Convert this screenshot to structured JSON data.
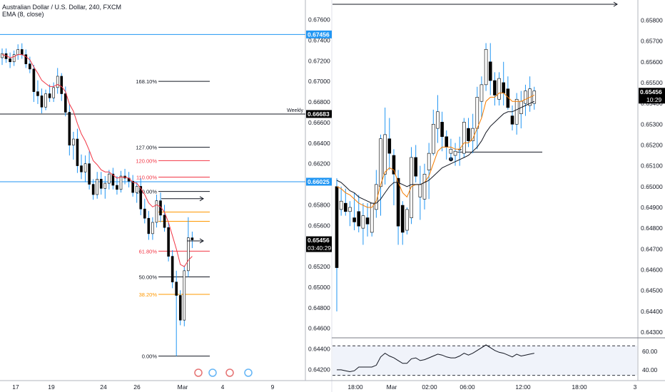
{
  "header": {
    "title": "Australian Dollar / U.S. Dollar, 240, FXCM",
    "indicator": "EMA (8, close)"
  },
  "colors": {
    "bull": "#ffffff",
    "bear": "#000000",
    "wick": "#2196f3",
    "ema_orange": "#f57c00",
    "ema_black": "#131722",
    "level_blue": "#2196f3",
    "fib_red": "#f23645",
    "fib_orange": "#ff9800",
    "fib_gray": "#787b86",
    "axis_text": "#131722"
  },
  "chart_data": [
    {
      "type": "candlestick",
      "panel": "left",
      "title": "Australian Dollar / U.S. Dollar, 240, FXCM",
      "indicator": "EMA (8, close)",
      "y_ticks": [
        "0.67600",
        "0.67400",
        "0.67200",
        "0.67000",
        "0.66800",
        "0.66600",
        "0.66400",
        "0.66200",
        "0.65800",
        "0.65600",
        "0.65200",
        "0.65000",
        "0.64800",
        "0.64600",
        "0.64400",
        "0.64200"
      ],
      "ylim": [
        0.6412,
        0.6768
      ],
      "x_ticks": [
        "17",
        "19",
        "24",
        "26",
        "Mar",
        "4",
        "9"
      ],
      "price_labels": [
        {
          "text": "0.67456",
          "price": 0.67456,
          "color": "#2196f3"
        },
        {
          "text": "0.66683",
          "price": 0.66683,
          "color": "#000000",
          "note": "Weekly"
        },
        {
          "text": "0.66025",
          "price": 0.66025,
          "color": "#2196f3"
        },
        {
          "text": "0.65456",
          "price": 0.65456,
          "color": "#000000",
          "sub": "03:40:29"
        }
      ],
      "fib_levels": [
        {
          "label": "168.10%",
          "price": 0.67,
          "color": "#131722"
        },
        {
          "label": "127.00%",
          "price": 0.6636,
          "color": "#131722"
        },
        {
          "label": "120.00%",
          "price": 0.6623,
          "color": "#f23645"
        },
        {
          "label": "110.00%",
          "price": 0.6607,
          "color": "#f23645"
        },
        {
          "label": "100.00%",
          "price": 0.6593,
          "color": "#131722"
        },
        {
          "label": "",
          "price": 0.6573,
          "color": "#ff9800"
        },
        {
          "label": "",
          "price": 0.6564,
          "color": "#ff9800"
        },
        {
          "label": "61.80%",
          "price": 0.6535,
          "color": "#f23645"
        },
        {
          "label": "50.00%",
          "price": 0.651,
          "color": "#131722"
        },
        {
          "label": "38.20%",
          "price": 0.6493,
          "color": "#ff9800"
        },
        {
          "label": "0.00%",
          "price": 0.6433,
          "color": "#131722"
        }
      ],
      "candles": [
        [
          0.6723,
          0.6732,
          0.6716,
          0.6727
        ],
        [
          0.6727,
          0.6732,
          0.6718,
          0.6722
        ],
        [
          0.6722,
          0.6728,
          0.6713,
          0.6719
        ],
        [
          0.6719,
          0.673,
          0.6715,
          0.6726
        ],
        [
          0.6726,
          0.6736,
          0.6721,
          0.6731
        ],
        [
          0.6731,
          0.6737,
          0.6722,
          0.6726
        ],
        [
          0.6726,
          0.6731,
          0.6713,
          0.6717
        ],
        [
          0.6717,
          0.6724,
          0.6708,
          0.6712
        ],
        [
          0.6712,
          0.6716,
          0.668,
          0.669
        ],
        [
          0.669,
          0.6701,
          0.6678,
          0.6686
        ],
        [
          0.6686,
          0.6693,
          0.6669,
          0.6675
        ],
        [
          0.6675,
          0.6692,
          0.6672,
          0.6688
        ],
        [
          0.6688,
          0.6697,
          0.668,
          0.6684
        ],
        [
          0.6684,
          0.6699,
          0.668,
          0.6694
        ],
        [
          0.6694,
          0.6713,
          0.6688,
          0.6705
        ],
        [
          0.6705,
          0.6708,
          0.6681,
          0.6688
        ],
        [
          0.6688,
          0.6695,
          0.6666,
          0.667
        ],
        [
          0.667,
          0.6678,
          0.6628,
          0.6638
        ],
        [
          0.6638,
          0.6651,
          0.6624,
          0.6644
        ],
        [
          0.6644,
          0.6654,
          0.6611,
          0.6618
        ],
        [
          0.6618,
          0.6629,
          0.6605,
          0.6612
        ],
        [
          0.6612,
          0.6628,
          0.6602,
          0.662
        ],
        [
          0.662,
          0.6632,
          0.6595,
          0.66
        ],
        [
          0.66,
          0.6605,
          0.6585,
          0.659
        ],
        [
          0.659,
          0.6612,
          0.6586,
          0.6605
        ],
        [
          0.6605,
          0.6612,
          0.659,
          0.6596
        ],
        [
          0.6596,
          0.6608,
          0.6586,
          0.6601
        ],
        [
          0.6601,
          0.6614,
          0.6595,
          0.661
        ],
        [
          0.661,
          0.6616,
          0.6595,
          0.6599
        ],
        [
          0.6599,
          0.6608,
          0.659,
          0.6595
        ],
        [
          0.6595,
          0.6613,
          0.6592,
          0.6608
        ],
        [
          0.6608,
          0.6615,
          0.66,
          0.6606
        ],
        [
          0.6606,
          0.6612,
          0.6597,
          0.6603
        ],
        [
          0.6603,
          0.6609,
          0.6588,
          0.6592
        ],
        [
          0.6592,
          0.6602,
          0.6582,
          0.6598
        ],
        [
          0.6598,
          0.6606,
          0.657,
          0.6576
        ],
        [
          0.6576,
          0.6586,
          0.6562,
          0.6567
        ],
        [
          0.6567,
          0.6574,
          0.6546,
          0.6552
        ],
        [
          0.6552,
          0.6568,
          0.6546,
          0.6563
        ],
        [
          0.6563,
          0.659,
          0.6558,
          0.6584
        ],
        [
          0.6584,
          0.6592,
          0.6563,
          0.657
        ],
        [
          0.657,
          0.658,
          0.6554,
          0.6558
        ],
        [
          0.6558,
          0.6563,
          0.6525,
          0.653
        ],
        [
          0.653,
          0.6536,
          0.6499,
          0.6505
        ],
        [
          0.6505,
          0.6516,
          0.6433,
          0.6492
        ],
        [
          0.6492,
          0.6497,
          0.6463,
          0.6468
        ],
        [
          0.6468,
          0.6521,
          0.6462,
          0.6516
        ],
        [
          0.6516,
          0.6568,
          0.651,
          0.6548
        ],
        [
          0.6548,
          0.6554,
          0.6538,
          0.6546
        ]
      ],
      "ema": [
        0.6726,
        0.6725,
        0.6723,
        0.6724,
        0.6726,
        0.6726,
        0.6724,
        0.6721,
        0.6714,
        0.6708,
        0.6701,
        0.6698,
        0.6695,
        0.6695,
        0.6697,
        0.6695,
        0.669,
        0.6678,
        0.6671,
        0.6659,
        0.6649,
        0.6642,
        0.6633,
        0.6623,
        0.6619,
        0.6614,
        0.6612,
        0.6612,
        0.6609,
        0.6606,
        0.6607,
        0.6607,
        0.6606,
        0.6602,
        0.6601,
        0.6596,
        0.659,
        0.6582,
        0.6578,
        0.658,
        0.6578,
        0.6573,
        0.6563,
        0.655,
        0.6537,
        0.6522,
        0.652,
        0.6526,
        0.653
      ],
      "annotations": [
        "Weekly"
      ]
    },
    {
      "type": "candlestick",
      "panel": "right",
      "y_ticks": [
        "0.65800",
        "0.65700",
        "0.65600",
        "0.65500",
        "0.65400",
        "0.65300",
        "0.65200",
        "0.65100",
        "0.65000",
        "0.64900",
        "0.64800",
        "0.64700",
        "0.64600",
        "0.64500",
        "0.64400",
        "0.64300"
      ],
      "ylim": [
        0.643,
        0.6587
      ],
      "x_ticks": [
        "18:00",
        "Mar",
        "02:00",
        "06:00",
        "12:00",
        "18:00",
        "3"
      ],
      "price_labels": [
        {
          "text": "0.65456",
          "price": 0.65456,
          "color": "#000000",
          "sub": "10:29"
        }
      ],
      "horizontal_level": 0.65166,
      "candles": [
        [
          0.65,
          0.6504,
          0.644,
          0.6461
        ],
        [
          0.6489,
          0.65,
          0.6486,
          0.6493
        ],
        [
          0.6492,
          0.6499,
          0.6486,
          0.6488
        ],
        [
          0.6488,
          0.6493,
          0.6481,
          0.649
        ],
        [
          0.6485,
          0.6497,
          0.6479,
          0.6483
        ],
        [
          0.6488,
          0.6496,
          0.6478,
          0.6481
        ],
        [
          0.648,
          0.6492,
          0.6472,
          0.6486
        ],
        [
          0.6485,
          0.6492,
          0.6476,
          0.6482
        ],
        [
          0.6478,
          0.6492,
          0.6476,
          0.6492
        ],
        [
          0.6489,
          0.6508,
          0.6485,
          0.6501
        ],
        [
          0.65,
          0.6525,
          0.6486,
          0.6523
        ],
        [
          0.6506,
          0.6538,
          0.6501,
          0.6525
        ],
        [
          0.6523,
          0.6533,
          0.6508,
          0.6516
        ],
        [
          0.6515,
          0.6518,
          0.6491,
          0.6506
        ],
        [
          0.6504,
          0.6508,
          0.6472,
          0.6481
        ],
        [
          0.6491,
          0.6493,
          0.6472,
          0.6478
        ],
        [
          0.6479,
          0.649,
          0.6477,
          0.6489
        ],
        [
          0.6485,
          0.6519,
          0.6482,
          0.6514
        ],
        [
          0.6514,
          0.652,
          0.6502,
          0.6505
        ],
        [
          0.6495,
          0.651,
          0.6484,
          0.6501
        ],
        [
          0.6494,
          0.6511,
          0.6489,
          0.6506
        ],
        [
          0.6508,
          0.6521,
          0.6494,
          0.6516
        ],
        [
          0.6516,
          0.6537,
          0.6515,
          0.653
        ],
        [
          0.6528,
          0.6544,
          0.6521,
          0.6536
        ],
        [
          0.6531,
          0.6536,
          0.6517,
          0.6524
        ],
        [
          0.6524,
          0.6527,
          0.6513,
          0.6519
        ],
        [
          0.6516,
          0.6523,
          0.6513,
          0.6518
        ],
        [
          0.6515,
          0.6521,
          0.651,
          0.6517
        ],
        [
          0.6518,
          0.6524,
          0.651,
          0.6518
        ],
        [
          0.6516,
          0.6533,
          0.6514,
          0.6531
        ],
        [
          0.6528,
          0.6533,
          0.6519,
          0.6522
        ],
        [
          0.6522,
          0.6535,
          0.6516,
          0.6528
        ],
        [
          0.6528,
          0.6548,
          0.6518,
          0.6543
        ],
        [
          0.6541,
          0.6553,
          0.6533,
          0.6549
        ],
        [
          0.6549,
          0.6569,
          0.6546,
          0.6566
        ],
        [
          0.656,
          0.6569,
          0.6544,
          0.6551
        ],
        [
          0.6551,
          0.6555,
          0.6539,
          0.6544
        ],
        [
          0.6542,
          0.6555,
          0.6539,
          0.6552
        ],
        [
          0.655,
          0.656,
          0.6539,
          0.6545
        ],
        [
          0.6547,
          0.6553,
          0.6537,
          0.6538
        ],
        [
          0.6534,
          0.6539,
          0.6527,
          0.653
        ],
        [
          0.653,
          0.6545,
          0.6525,
          0.6542
        ],
        [
          0.6535,
          0.6546,
          0.6528,
          0.6541
        ],
        [
          0.654,
          0.6549,
          0.6534,
          0.6546
        ],
        [
          0.6539,
          0.6553,
          0.6536,
          0.6547
        ],
        [
          0.654,
          0.6548,
          0.6537,
          0.6546
        ]
      ],
      "ema_orange": [
        0.65,
        0.6499,
        0.6497,
        0.6496,
        0.6494,
        0.6492,
        0.6491,
        0.649,
        0.649,
        0.6493,
        0.6501,
        0.6507,
        0.6509,
        0.6508,
        0.6502,
        0.6497,
        0.6495,
        0.65,
        0.6501,
        0.6501,
        0.6502,
        0.6505,
        0.6511,
        0.6517,
        0.6519,
        0.6519,
        0.6519,
        0.6518,
        0.6518,
        0.6521,
        0.6521,
        0.6523,
        0.6528,
        0.6533,
        0.6541,
        0.6543,
        0.6543,
        0.6545,
        0.6545,
        0.6543,
        0.6541,
        0.6541,
        0.6541,
        0.6542,
        0.6543,
        0.6544
      ],
      "ema_black": [
        0.6503,
        0.6502,
        0.65,
        0.6498,
        0.6497,
        0.6495,
        0.6494,
        0.6493,
        0.6492,
        0.6492,
        0.6494,
        0.6497,
        0.65,
        0.6502,
        0.6502,
        0.6501,
        0.65,
        0.6501,
        0.6501,
        0.6501,
        0.6502,
        0.6503,
        0.6505,
        0.6507,
        0.6509,
        0.651,
        0.6511,
        0.6512,
        0.6513,
        0.6514,
        0.6515,
        0.6517,
        0.6519,
        0.6522,
        0.6526,
        0.6529,
        0.6531,
        0.6533,
        0.6535,
        0.6536,
        0.6536,
        0.6537,
        0.6538,
        0.6539,
        0.654,
        0.6541
      ]
    },
    {
      "type": "line",
      "panel": "right-oscillator",
      "y_ticks": [
        "60.00",
        "40.00"
      ],
      "ylim": [
        33,
        70
      ],
      "levels": [
        66,
        34
      ],
      "values": [
        40,
        40,
        39,
        38,
        39,
        43,
        43,
        43,
        43,
        45,
        54,
        58,
        55,
        53,
        50,
        47,
        47,
        52,
        53,
        50,
        51,
        53,
        55,
        57,
        56,
        54,
        53,
        53,
        55,
        58,
        56,
        58,
        61,
        64,
        67,
        64,
        61,
        59,
        58,
        56,
        54,
        57,
        55,
        56,
        57,
        58
      ]
    }
  ]
}
